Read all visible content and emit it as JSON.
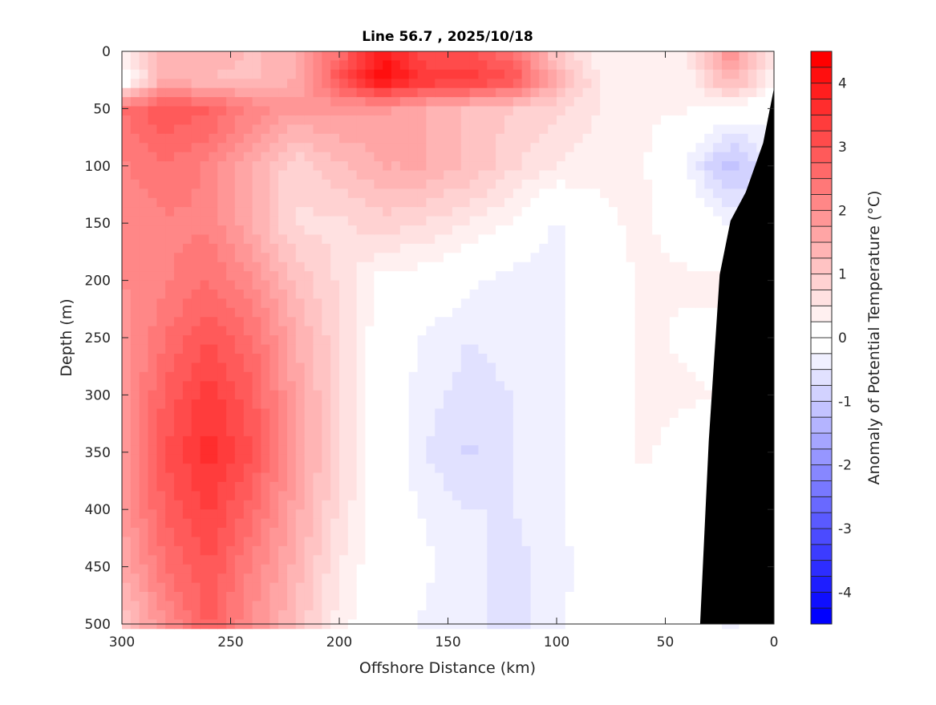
{
  "chart_data": {
    "type": "heatmap",
    "title": "Line 56.7 , 2025/10/18",
    "xlabel": "Offshore Distance (km)",
    "ylabel": "Depth (m)",
    "colorbar_label": "Anomaly of Potential Temperature (°C)",
    "xlim": [
      300,
      0
    ],
    "ylim": [
      500,
      0
    ],
    "x_ticks": [
      "300",
      "250",
      "200",
      "150",
      "100",
      "50",
      "0"
    ],
    "y_ticks": [
      "0",
      "50",
      "100",
      "150",
      "200",
      "250",
      "300",
      "350",
      "400",
      "450",
      "500"
    ],
    "colorbar_ticks": [
      "4",
      "3",
      "2",
      "1",
      "0",
      "-1",
      "-2",
      "-3",
      "-4"
    ],
    "clim": [
      -4.5,
      4.5
    ],
    "contour_step": 0.25,
    "colormap": {
      "negative": "#0000ff",
      "zero": "#ffffff",
      "positive": "#ff0000"
    },
    "zero_contour_color": "#000000",
    "bathymetry_color": "#000000",
    "x": [
      300,
      280,
      260,
      240,
      220,
      200,
      180,
      160,
      140,
      120,
      100,
      80,
      60,
      40,
      20,
      0
    ],
    "depth": [
      0,
      25,
      50,
      100,
      150,
      200,
      250,
      300,
      350,
      400,
      450,
      500
    ],
    "values": [
      [
        0.5,
        1.5,
        1.5,
        1.2,
        1.5,
        2.5,
        4.0,
        3.0,
        3.0,
        2.5,
        1.0,
        0.3,
        0.5,
        0.5,
        2.0,
        0.5
      ],
      [
        -0.3,
        1.5,
        1.2,
        1.2,
        1.5,
        3.0,
        4.2,
        3.5,
        3.5,
        3.0,
        1.5,
        0.5,
        0.5,
        0.3,
        1.5,
        0.3
      ],
      [
        2.5,
        3.0,
        2.8,
        2.2,
        1.8,
        1.8,
        1.8,
        1.5,
        1.2,
        1.0,
        0.8,
        0.5,
        0.3,
        0.3,
        0.0,
        0.0
      ],
      [
        2.2,
        2.5,
        2.2,
        1.5,
        0.8,
        1.2,
        1.5,
        1.5,
        1.2,
        0.8,
        0.5,
        0.3,
        0.3,
        -0.3,
        -1.2,
        -0.5
      ],
      [
        2.0,
        2.2,
        2.2,
        1.5,
        0.7,
        0.7,
        0.9,
        0.7,
        0.5,
        0.2,
        -0.3,
        0.2,
        0.3,
        0.1,
        -0.3,
        -0.3
      ],
      [
        2.0,
        2.2,
        2.5,
        2.0,
        1.2,
        0.7,
        0.1,
        0.1,
        -0.2,
        -0.4,
        -0.4,
        0.1,
        0.3,
        0.3,
        0.3,
        0.0
      ],
      [
        1.8,
        2.5,
        3.0,
        2.5,
        1.5,
        0.8,
        0.0,
        -0.3,
        -0.5,
        -0.4,
        -0.3,
        0.1,
        0.3,
        0.2,
        0.2,
        0.0
      ],
      [
        1.8,
        2.8,
        3.4,
        2.8,
        1.7,
        0.8,
        0.0,
        -0.4,
        -0.6,
        -0.5,
        -0.3,
        0.1,
        0.3,
        0.3,
        0.2,
        0.0
      ],
      [
        1.8,
        3.0,
        3.6,
        3.0,
        1.8,
        0.8,
        0.0,
        -0.5,
        -0.8,
        -0.5,
        -0.3,
        0.1,
        0.3,
        0.1,
        0.0,
        0.0
      ],
      [
        1.8,
        2.8,
        3.3,
        2.6,
        1.6,
        0.7,
        0.0,
        -0.3,
        -0.5,
        -0.5,
        -0.3,
        0.0,
        0.1,
        0.0,
        -0.1,
        0.0
      ],
      [
        1.5,
        2.5,
        3.0,
        2.2,
        1.4,
        0.5,
        0.0,
        -0.2,
        -0.4,
        -0.6,
        -0.4,
        0.0,
        0.2,
        0.1,
        -0.2,
        0.0
      ],
      [
        1.0,
        2.0,
        2.8,
        2.0,
        1.2,
        0.4,
        -0.1,
        -0.3,
        -0.4,
        -0.6,
        -0.3,
        0.0,
        0.2,
        0.1,
        -0.3,
        0.0
      ]
    ],
    "bathymetry": [
      [
        0,
        32
      ],
      [
        5,
        80
      ],
      [
        13,
        123
      ],
      [
        20,
        148
      ],
      [
        25,
        195
      ],
      [
        30,
        340
      ],
      [
        34,
        500
      ]
    ]
  }
}
